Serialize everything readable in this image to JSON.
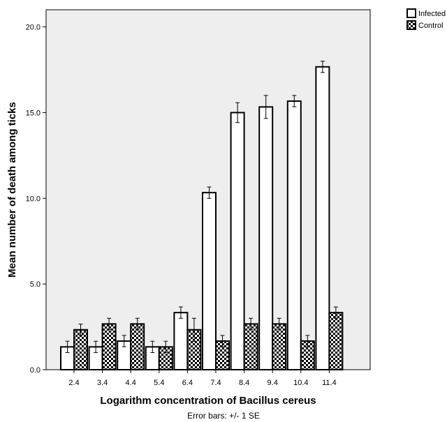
{
  "chart_data": {
    "type": "bar",
    "xlabel": "Logarithm concentration of Bacillus cereus",
    "ylabel": "Mean number of death among ticks",
    "note": "Error bars: +/- 1 SE",
    "categories": [
      "2.4",
      "3.4",
      "4.4",
      "5.4",
      "6.4",
      "7.4",
      "8.4",
      "9.4",
      "10.4",
      "11.4"
    ],
    "ylim": [
      0,
      21.0
    ],
    "yticks": [
      "0.0",
      "5.0",
      "10.0",
      "15.0",
      "20.0"
    ],
    "plot_background": "#eeeeee",
    "legend_position": "top-right",
    "series": [
      {
        "name": "Infected",
        "pattern": "plain",
        "values": [
          1.33,
          1.33,
          1.67,
          1.33,
          3.33,
          10.33,
          15.0,
          15.33,
          15.67,
          17.67
        ],
        "errors": [
          0.33,
          0.33,
          0.33,
          0.33,
          0.33,
          0.33,
          0.58,
          0.67,
          0.33,
          0.33
        ]
      },
      {
        "name": "Control",
        "pattern": "checkered",
        "values": [
          2.33,
          2.67,
          2.67,
          1.33,
          2.33,
          1.67,
          2.67,
          2.67,
          1.67,
          3.33
        ],
        "errors": [
          0.33,
          0.33,
          0.33,
          0.33,
          0.67,
          0.33,
          0.33,
          0.33,
          0.33,
          0.33
        ]
      }
    ]
  }
}
